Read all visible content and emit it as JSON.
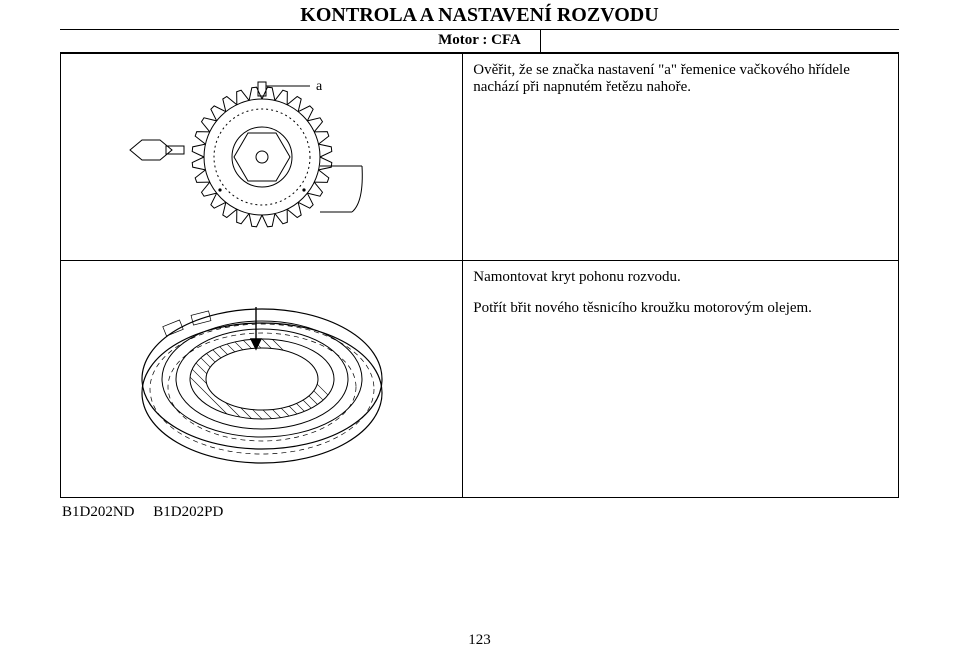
{
  "title": "KONTROLA A NASTAVENÍ ROZVODU",
  "subtitle": "Motor : CFA",
  "row1": {
    "text": "Ověřit, že se značka nastavení \"a\" řemenice vačkového hřídele nachází při napnutém řetězu nahoře.",
    "gear_label": "a"
  },
  "row2": {
    "text1": "Namontovat kryt pohonu rozvodu.",
    "text2": "Potřít břit nového těsnicího kroužku motorovým olejem."
  },
  "captions": {
    "left": "B1D202ND",
    "right": "B1D202PD"
  },
  "page_number": "123",
  "colors": {
    "stroke": "#000000",
    "fill_bg": "#ffffff"
  }
}
